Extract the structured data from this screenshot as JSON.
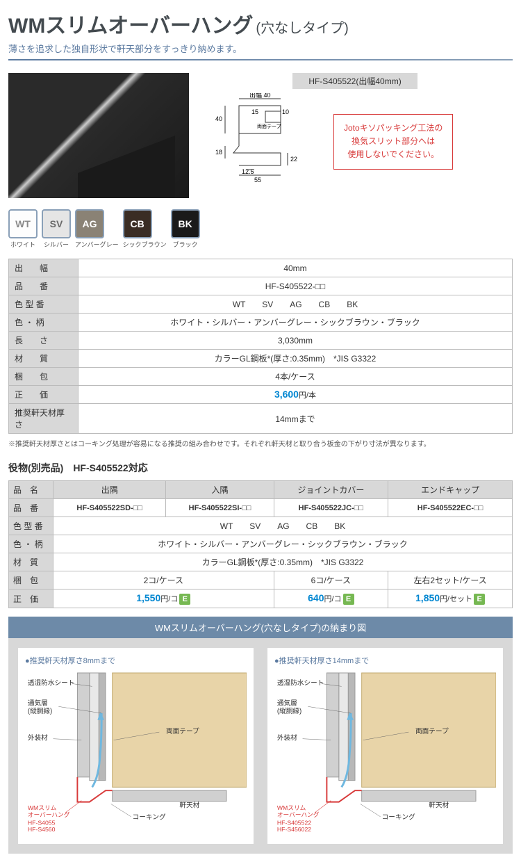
{
  "header": {
    "title_main": "WMスリムオーバーハング",
    "title_sub": "(穴なしタイプ)",
    "subtitle": "薄さを追求した独自形状で軒天部分をすっきり納めます。",
    "colors": {
      "title": "#434a4f",
      "subtitle": "#5b7aa0"
    }
  },
  "dimension": {
    "caption": "HF-S405522(出幅40mm)",
    "labels": {
      "de40": "出幅 40",
      "a40": "40",
      "a18": "18",
      "a15": "15",
      "a10": "10",
      "a22": "22",
      "a125": "12.5",
      "a55": "55",
      "tape": "両面テープ"
    }
  },
  "warning": {
    "line1": "Jotoキソパッキング工法の",
    "line2": "換気スリット部分へは",
    "line3": "使用しないでください。",
    "border": "#d83a3a"
  },
  "swatches": [
    {
      "code": "WT",
      "label": "ホワイト",
      "bg": "#fdfdfd",
      "fg": "#8a8a8a"
    },
    {
      "code": "SV",
      "label": "シルバー",
      "bg": "#e5e5e5",
      "fg": "#6a6a6a"
    },
    {
      "code": "AG",
      "label": "アンバーグレー",
      "bg": "#8a8275",
      "fg": "#fff"
    },
    {
      "code": "CB",
      "label": "シックブラウン",
      "bg": "#3a2d24",
      "fg": "#fff"
    },
    {
      "code": "BK",
      "label": "ブラック",
      "bg": "#1a1a1a",
      "fg": "#fff"
    }
  ],
  "spec": {
    "rows": [
      {
        "k": "出　　幅",
        "v": "40mm"
      },
      {
        "k": "品　　番",
        "v": "HF-S405522-□□"
      },
      {
        "k": "色 型 番",
        "v": "WT　　SV　　AG　　CB　　BK"
      },
      {
        "k": "色 ・ 柄",
        "v": "ホワイト・シルバー・アンバーグレー・シックブラウン・ブラック"
      },
      {
        "k": "長　　さ",
        "v": "3,030mm"
      },
      {
        "k": "材　　質",
        "v": "カラーGL鋼板*(厚さ:0.35mm)　*JIS G3322"
      },
      {
        "k": "梱　　包",
        "v": "4本/ケース"
      },
      {
        "k": "正　　価",
        "v": "3,600円/本",
        "price": true
      },
      {
        "k": "推奨軒天材厚さ",
        "v": "14mmまで"
      }
    ],
    "footnote": "※推奨軒天材厚さとはコーキング処理が容易になる推奨の組み合わせです。それぞれ軒天材と取り合う板金の下がり寸法が異なります。"
  },
  "accessories": {
    "heading": "役物(別売品)　HF-S405522対応",
    "cols": [
      "出隅",
      "入隅",
      "ジョイントカバー",
      "エンドキャップ"
    ],
    "partno": [
      "HF-S405522SD-□□",
      "HF-S405522SI-□□",
      "HF-S405522JC-□□",
      "HF-S405522EC-□□"
    ],
    "color_codes": "WT　　SV　　AG　　CB　　BK",
    "colors": "ホワイト・シルバー・アンバーグレー・シックブラウン・ブラック",
    "material": "カラーGL鋼板*(厚さ:0.35mm)　*JIS G3322",
    "packaging": [
      "2コ/ケース",
      "6コ/ケース",
      "左右2セット/ケース"
    ],
    "prices": [
      "1,550円/コ",
      "640円/コ",
      "1,850円/セット"
    ],
    "row_labels": {
      "name": "品　名",
      "part": "品　番",
      "ccode": "色 型 番",
      "cpat": "色 ・ 柄",
      "mat": "材　質",
      "pack": "梱　包",
      "price": "正　価"
    }
  },
  "install": {
    "title": "WMスリムオーバーハング(穴なしタイプ)の納まり図",
    "col1_caption": "●推奨軒天材厚さ8mmまで",
    "col2_caption": "●推奨軒天材厚さ14mmまで",
    "labels": {
      "sheet": "透湿防水シート",
      "air": "通気層",
      "air2": "(縦胴縁)",
      "gaiso": "外装材",
      "tape": "両面テープ",
      "nokiten": "軒天材",
      "caulk": "コーキング",
      "prod": "WMスリム",
      "prod2": "オーバーハング",
      "m1a": "HF-S4055",
      "m1b": "HF-S4560",
      "m2a": "HF-S405522",
      "m2b": "HF-S456022"
    },
    "colors": {
      "title_bg": "#6d8aa8",
      "body_bg": "#d8d8d8",
      "wood": "#e8d4a8",
      "wall": "#d0d0d0",
      "outline": "#d83a3a",
      "air": "#6fb8e0"
    }
  }
}
